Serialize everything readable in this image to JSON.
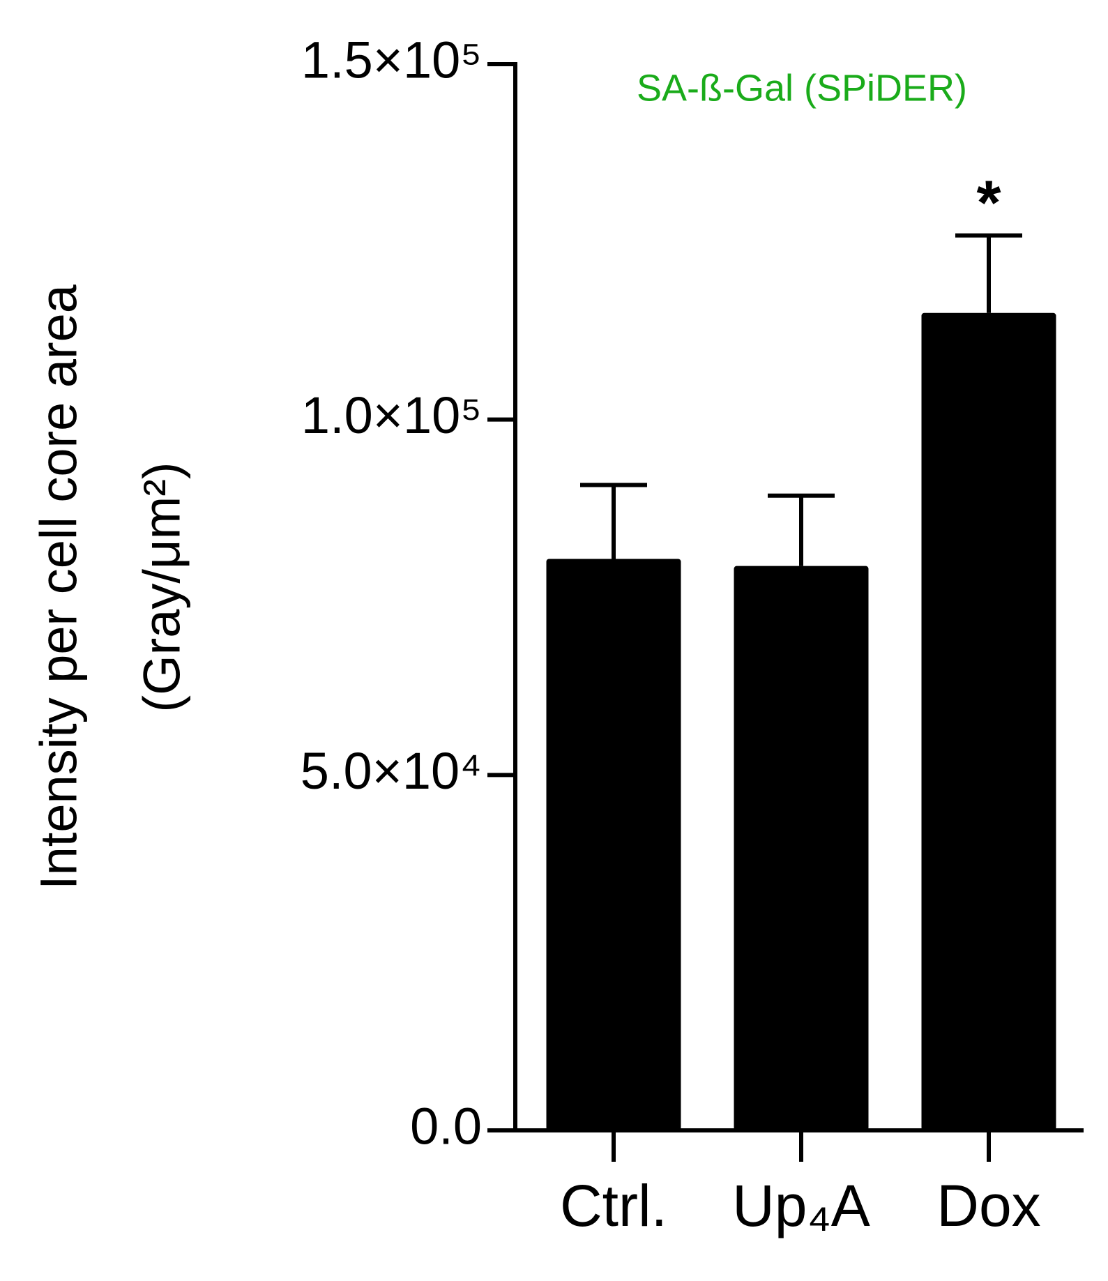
{
  "chart_data": {
    "type": "bar",
    "title": "SA-ß-Gal (SPiDER)",
    "title_color": "#1aab1a",
    "y_label": [
      "Intensity per cell core area",
      "(Gray/μm²)"
    ],
    "categories": [
      "Ctrl.",
      "Up₄A",
      "Dox"
    ],
    "values": [
      80400,
      79400,
      115000
    ],
    "errors": [
      10400,
      9900,
      10900
    ],
    "color": "#000000",
    "ylim": [
      0,
      150000
    ],
    "yticks": [
      {
        "value": 0,
        "label": "0.0"
      },
      {
        "value": 50000,
        "label": "5.0×10⁴"
      },
      {
        "value": 100000,
        "label": "1.0×10⁵"
      },
      {
        "value": 150000,
        "label": "1.5×10⁵"
      }
    ],
    "annotations": [
      {
        "text": "*"
      }
    ],
    "grid": false
  }
}
